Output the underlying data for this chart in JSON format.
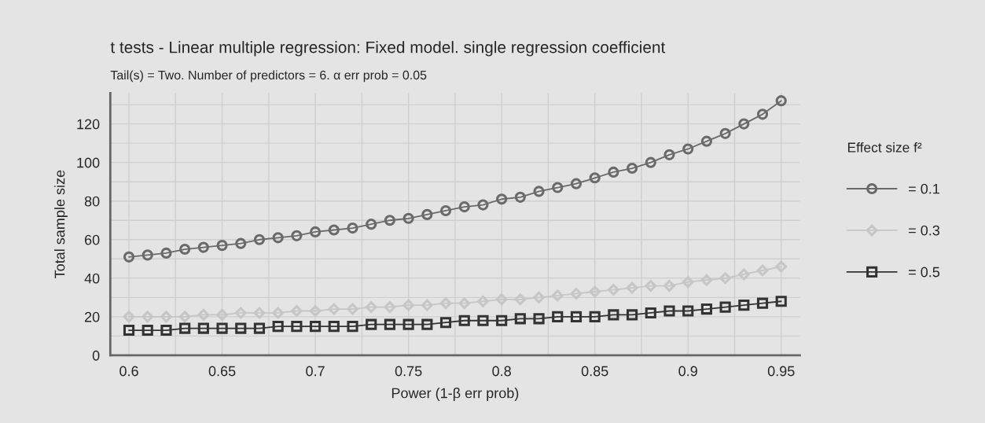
{
  "chart_data": {
    "type": "line",
    "title": "t tests - Linear multiple regression: Fixed model. single regression coefficient",
    "subtitle": "Tail(s) = Two. Number of predictors = 6. α err prob = 0.05",
    "xlabel": "Power (1-β err prob)",
    "ylabel": "Total sample size",
    "legend_title": "Effect size f²",
    "x": [
      0.6,
      0.61,
      0.62,
      0.63,
      0.64,
      0.65,
      0.66,
      0.67,
      0.68,
      0.69,
      0.7,
      0.71,
      0.72,
      0.73,
      0.74,
      0.75,
      0.76,
      0.77,
      0.78,
      0.79,
      0.8,
      0.81,
      0.82,
      0.83,
      0.84,
      0.85,
      0.86,
      0.87,
      0.88,
      0.89,
      0.9,
      0.91,
      0.92,
      0.93,
      0.94,
      0.95
    ],
    "series": [
      {
        "name": "= 0.1",
        "color": "#6a6a6a",
        "marker": "circle",
        "values": [
          51,
          52,
          53,
          55,
          56,
          57,
          58,
          60,
          61,
          62,
          64,
          65,
          66,
          68,
          70,
          71,
          73,
          75,
          77,
          78,
          81,
          82,
          85,
          87,
          89,
          92,
          95,
          97,
          100,
          104,
          107,
          111,
          115,
          120,
          125,
          132
        ]
      },
      {
        "name": "= 0.3",
        "color": "#c6c6c6",
        "marker": "diamond",
        "values": [
          20,
          20,
          20,
          20,
          21,
          21,
          22,
          22,
          22,
          23,
          23,
          24,
          24,
          25,
          25,
          26,
          26,
          27,
          27,
          28,
          29,
          29,
          30,
          31,
          32,
          33,
          34,
          35,
          36,
          36,
          38,
          39,
          40,
          42,
          44,
          46
        ]
      },
      {
        "name": "= 0.5",
        "color": "#333333",
        "marker": "square",
        "values": [
          13,
          13,
          13,
          14,
          14,
          14,
          14,
          14,
          15,
          15,
          15,
          15,
          15,
          16,
          16,
          16,
          16,
          17,
          18,
          18,
          18,
          19,
          19,
          20,
          20,
          20,
          21,
          21,
          22,
          23,
          23,
          24,
          25,
          26,
          27,
          28
        ]
      }
    ],
    "xlim": [
      0.59,
      0.96
    ],
    "xticks": [
      0.6,
      {
        "value": 0.625,
        "label": null
      },
      0.65,
      {
        "value": 0.675,
        "label": null
      },
      0.7,
      {
        "value": 0.725,
        "label": null
      },
      0.75,
      {
        "value": 0.775,
        "label": null
      },
      0.8,
      {
        "value": 0.825,
        "label": null
      },
      0.85,
      {
        "value": 0.875,
        "label": null
      },
      0.9,
      {
        "value": 0.925,
        "label": null
      },
      0.95
    ],
    "ylim": [
      0,
      136
    ],
    "yticks": [
      0,
      {
        "value": 10,
        "label": null
      },
      20,
      {
        "value": 30,
        "label": null
      },
      40,
      {
        "value": 50,
        "label": null
      },
      60,
      {
        "value": 70,
        "label": null
      },
      80,
      {
        "value": 90,
        "label": null
      },
      100,
      {
        "value": 110,
        "label": null
      },
      120,
      {
        "value": 130,
        "label": null
      }
    ],
    "grid": true,
    "legend": "right",
    "line_style": "solid"
  }
}
